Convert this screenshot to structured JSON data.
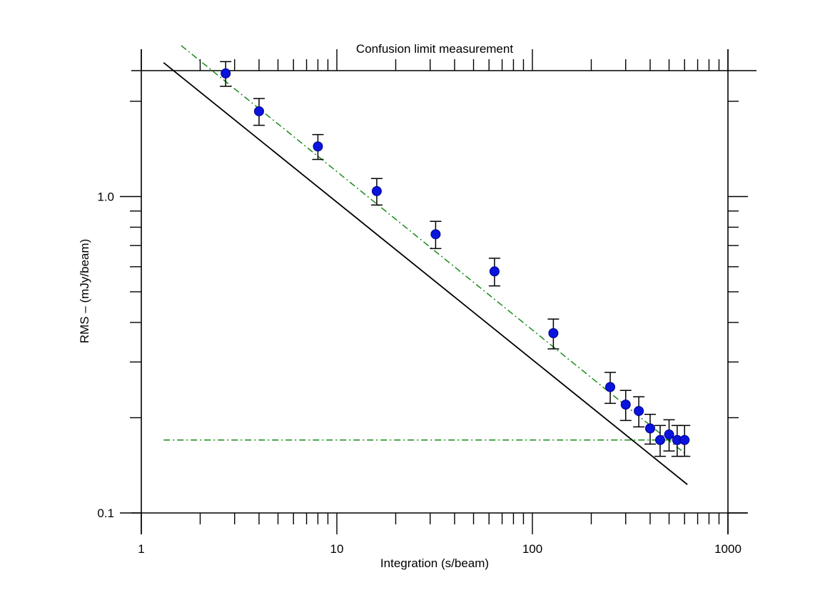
{
  "chart_data": {
    "type": "scatter",
    "title": "Confusion limit measurement",
    "xlabel": "Integration (s/beam)",
    "ylabel": "RMS – (mJy/beam)",
    "x_scale": "log",
    "y_scale": "log",
    "xlim": [
      1,
      1000
    ],
    "ylim": [
      0.1,
      2.5
    ],
    "x_tick_labels": [
      "1",
      "10",
      "100",
      "1000"
    ],
    "y_tick_labels": [
      "0.1",
      "1.0"
    ],
    "grid": false,
    "legend": "none",
    "colors": {
      "points": "#0a14dc",
      "point_edge": "#00008b",
      "errorbars": "#000000",
      "fit_line": "#000000",
      "dashed_lines": "#1a8a1a"
    },
    "series": [
      {
        "type": "scatter",
        "x": [
          2.7,
          4,
          8,
          16,
          32,
          64,
          128,
          250,
          300,
          350,
          400,
          450,
          500,
          550,
          600
        ],
        "y": [
          2.45,
          1.86,
          1.44,
          1.04,
          0.76,
          0.58,
          0.37,
          0.25,
          0.22,
          0.21,
          0.185,
          0.17,
          0.177,
          0.17,
          0.17
        ],
        "yerr": [
          0.22,
          0.18,
          0.13,
          0.1,
          0.075,
          0.058,
          0.04,
          0.028,
          0.024,
          0.023,
          0.02,
          0.019,
          0.02,
          0.019,
          0.019
        ]
      },
      {
        "type": "line",
        "style": "solid",
        "x": [
          1.3,
          620
        ],
        "y": [
          2.65,
          0.123
        ]
      },
      {
        "type": "line",
        "style": "dashdot",
        "x": [
          1.6,
          620
        ],
        "y": [
          3.0,
          0.152
        ]
      },
      {
        "type": "line",
        "style": "dashdot",
        "x": [
          1.3,
          620
        ],
        "y": [
          0.17,
          0.17
        ]
      }
    ]
  }
}
